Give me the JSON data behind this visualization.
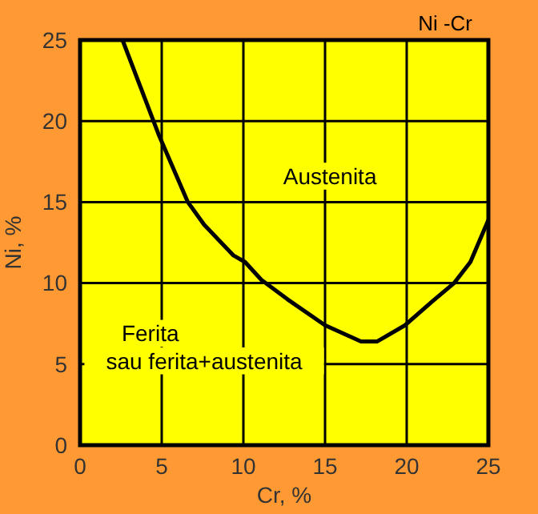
{
  "chart_data": {
    "type": "line",
    "title": "Ni -Cr",
    "xlabel": "Cr, %",
    "ylabel": "Ni, %",
    "x": [
      2.6,
      4.8,
      6.6,
      7.6,
      9.4,
      10.1,
      11.1,
      12.7,
      15,
      17.2,
      18.2,
      19.9,
      21.6,
      22.9,
      23.9,
      25
    ],
    "series": [
      {
        "color": "#000000",
        "values": [
          25,
          19.2,
          15,
          13.6,
          11.7,
          11.3,
          10.2,
          9,
          7.4,
          6.4,
          6.4,
          7.4,
          8.9,
          10,
          11.3,
          13.9
        ]
      }
    ],
    "xlim": [
      0,
      25
    ],
    "ylim": [
      0,
      25
    ],
    "xticks": [
      0,
      5,
      10,
      15,
      20,
      25
    ],
    "yticks": [
      0,
      5,
      10,
      15,
      20,
      25
    ],
    "grid": true,
    "marker": "none",
    "line_style": "solid",
    "annotations": [
      "Austenita",
      "Ferita",
      "sau ferita+austenita"
    ]
  }
}
